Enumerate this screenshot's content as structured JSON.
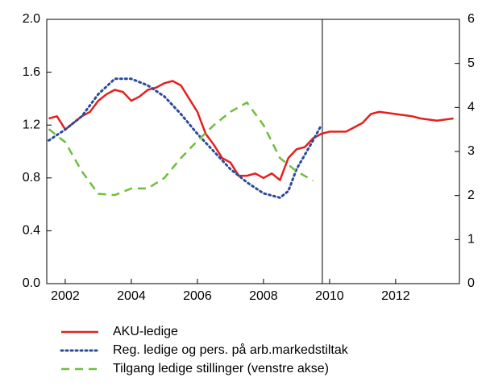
{
  "chart_data": {
    "type": "line",
    "xlim": [
      2001.44,
      2013.93
    ],
    "xticks": [
      2002,
      2004,
      2006,
      2008,
      2010,
      2012
    ],
    "ylim": [
      0,
      2
    ],
    "yticks": [
      {
        "value": 0,
        "label": "0.0"
      },
      0.4,
      0.8,
      1.2,
      1.6,
      {
        "value": 2,
        "label": "2.0"
      }
    ],
    "y2lim": [
      0,
      6
    ],
    "y2ticks": [
      0,
      1,
      2,
      3,
      4,
      5,
      6
    ],
    "vline": 2009.78,
    "series": [
      {
        "name": "AKU-ledige",
        "color": "#e3211f",
        "dash": "solid",
        "axis": "y2",
        "x": [
          2001.5,
          2001.75,
          2002.0,
          2002.25,
          2002.5,
          2002.75,
          2003.0,
          2003.25,
          2003.5,
          2003.75,
          2004.0,
          2004.25,
          2004.5,
          2004.75,
          2005.0,
          2005.25,
          2005.5,
          2006.0,
          2006.25,
          2006.5,
          2006.75,
          2007.0,
          2007.25,
          2007.5,
          2007.75,
          2008.0,
          2008.25,
          2008.5,
          2008.75,
          2009.0,
          2009.25,
          2009.5,
          2009.75,
          2010.0,
          2010.5,
          2011.0,
          2011.25,
          2011.5,
          2012.0,
          2012.5,
          2012.75,
          2013.25,
          2013.75
        ],
        "values": [
          3.75,
          3.8,
          3.5,
          3.65,
          3.8,
          3.9,
          4.15,
          4.3,
          4.4,
          4.35,
          4.15,
          4.25,
          4.4,
          4.45,
          4.55,
          4.6,
          4.5,
          3.9,
          3.4,
          3.15,
          2.85,
          2.75,
          2.45,
          2.45,
          2.5,
          2.4,
          2.5,
          2.35,
          2.85,
          3.05,
          3.1,
          3.3,
          3.4,
          3.45,
          3.45,
          3.65,
          3.85,
          3.9,
          3.85,
          3.8,
          3.75,
          3.7,
          3.75
        ]
      },
      {
        "name": "Reg. ledige og pers. på arb.markedstiltak",
        "color": "#2b4c9b",
        "dash": "dotted",
        "axis": "y2",
        "x": [
          2001.5,
          2002.0,
          2002.5,
          2003.0,
          2003.5,
          2004.0,
          2004.5,
          2005.0,
          2005.5,
          2006.0,
          2006.5,
          2007.0,
          2007.5,
          2008.0,
          2008.5,
          2008.75,
          2009.0,
          2009.5,
          2009.75
        ],
        "values": [
          3.25,
          3.5,
          3.8,
          4.3,
          4.65,
          4.65,
          4.5,
          4.25,
          3.85,
          3.4,
          3.0,
          2.6,
          2.3,
          2.05,
          1.95,
          2.1,
          2.6,
          3.25,
          3.6
        ]
      },
      {
        "name": "Tilgang ledige stillinger (venstre akse)",
        "color": "#6cbf3c",
        "dash": "dashed",
        "axis": "y",
        "x": [
          2001.5,
          2002.0,
          2002.5,
          2003.0,
          2003.5,
          2004.0,
          2004.5,
          2005.0,
          2005.5,
          2006.0,
          2006.5,
          2007.0,
          2007.5,
          2008.0,
          2008.5,
          2009.0,
          2009.5
        ],
        "values": [
          1.17,
          1.07,
          0.85,
          0.68,
          0.67,
          0.72,
          0.72,
          0.8,
          0.95,
          1.08,
          1.2,
          1.3,
          1.37,
          1.2,
          0.95,
          0.85,
          0.78
        ]
      }
    ]
  }
}
